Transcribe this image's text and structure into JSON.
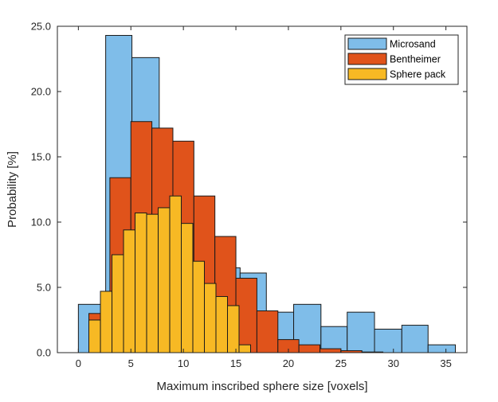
{
  "chart_data": {
    "type": "bar",
    "subtype": "overlaid-histogram",
    "xlabel": "Maximum inscribed sphere size [voxels]",
    "ylabel": "Probability [%]",
    "xlim": [
      -2,
      37
    ],
    "ylim": [
      0,
      25
    ],
    "xticks": [
      0,
      5,
      10,
      15,
      20,
      25,
      30,
      35
    ],
    "xtick_labels": [
      "0",
      "5",
      "10",
      "15",
      "20",
      "25",
      "30",
      "35"
    ],
    "yticks": [
      0,
      5,
      10,
      15,
      20,
      25
    ],
    "ytick_labels": [
      "0.0",
      "5.0",
      "10.0",
      "15.0",
      "20.0",
      "25.0"
    ],
    "grid": false,
    "legend_position": "top-right",
    "series": [
      {
        "name": "Microsand",
        "color": "#7fbde9",
        "bins": [
          {
            "x0": 0.0,
            "x1": 2.6,
            "value": 3.7
          },
          {
            "x0": 2.6,
            "x1": 5.1,
            "value": 24.3
          },
          {
            "x0": 5.1,
            "x1": 7.7,
            "value": 22.6
          },
          {
            "x0": 7.7,
            "x1": 10.3,
            "value": 13.5
          },
          {
            "x0": 10.3,
            "x1": 12.8,
            "value": 8.3
          },
          {
            "x0": 12.8,
            "x1": 15.4,
            "value": 6.5
          },
          {
            "x0": 15.4,
            "x1": 17.9,
            "value": 6.1
          },
          {
            "x0": 17.9,
            "x1": 20.5,
            "value": 3.1
          },
          {
            "x0": 20.5,
            "x1": 23.1,
            "value": 3.7
          },
          {
            "x0": 23.1,
            "x1": 25.6,
            "value": 2.0
          },
          {
            "x0": 25.6,
            "x1": 28.2,
            "value": 3.1
          },
          {
            "x0": 28.2,
            "x1": 30.8,
            "value": 1.8
          },
          {
            "x0": 30.8,
            "x1": 33.3,
            "value": 2.1
          },
          {
            "x0": 33.3,
            "x1": 35.9,
            "value": 0.6
          }
        ]
      },
      {
        "name": "Bentheimer",
        "color": "#e0531b",
        "bins": [
          {
            "x0": 1.0,
            "x1": 3.0,
            "value": 3.0
          },
          {
            "x0": 3.0,
            "x1": 5.0,
            "value": 13.4
          },
          {
            "x0": 5.0,
            "x1": 7.0,
            "value": 17.7
          },
          {
            "x0": 7.0,
            "x1": 9.0,
            "value": 17.2
          },
          {
            "x0": 9.0,
            "x1": 11.0,
            "value": 16.2
          },
          {
            "x0": 11.0,
            "x1": 13.0,
            "value": 12.0
          },
          {
            "x0": 13.0,
            "x1": 15.0,
            "value": 8.9
          },
          {
            "x0": 15.0,
            "x1": 17.0,
            "value": 5.7
          },
          {
            "x0": 17.0,
            "x1": 19.0,
            "value": 3.2
          },
          {
            "x0": 19.0,
            "x1": 21.0,
            "value": 1.0
          },
          {
            "x0": 21.0,
            "x1": 23.0,
            "value": 0.6
          },
          {
            "x0": 23.0,
            "x1": 25.0,
            "value": 0.3
          },
          {
            "x0": 25.0,
            "x1": 27.0,
            "value": 0.15
          },
          {
            "x0": 27.0,
            "x1": 29.0,
            "value": 0.05
          }
        ]
      },
      {
        "name": "Sphere pack",
        "color": "#f7b924",
        "bins": [
          {
            "x0": 1.0,
            "x1": 2.1,
            "value": 2.5
          },
          {
            "x0": 2.1,
            "x1": 3.2,
            "value": 4.7
          },
          {
            "x0": 3.2,
            "x1": 4.3,
            "value": 7.5
          },
          {
            "x0": 4.3,
            "x1": 5.4,
            "value": 9.4
          },
          {
            "x0": 5.4,
            "x1": 6.5,
            "value": 10.7
          },
          {
            "x0": 6.5,
            "x1": 7.6,
            "value": 10.6
          },
          {
            "x0": 7.6,
            "x1": 8.7,
            "value": 11.1
          },
          {
            "x0": 8.7,
            "x1": 9.8,
            "value": 12.0
          },
          {
            "x0": 9.8,
            "x1": 10.9,
            "value": 9.9
          },
          {
            "x0": 10.9,
            "x1": 12.0,
            "value": 7.0
          },
          {
            "x0": 12.0,
            "x1": 13.1,
            "value": 5.3
          },
          {
            "x0": 13.1,
            "x1": 14.2,
            "value": 4.3
          },
          {
            "x0": 14.2,
            "x1": 15.3,
            "value": 3.6
          },
          {
            "x0": 15.3,
            "x1": 16.4,
            "value": 0.6
          }
        ]
      }
    ]
  }
}
